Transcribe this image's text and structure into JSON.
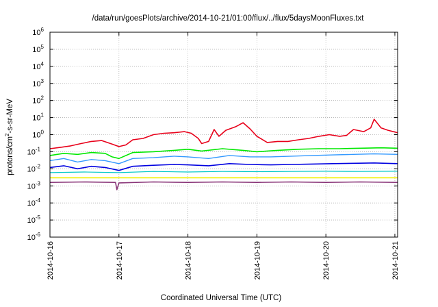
{
  "chart_data": {
    "type": "line",
    "title": "/data/run/goesPlots/archive/2014-10-21/01:00/flux/../flux/5daysMoonFluxes.txt",
    "xlabel": "Coordinated Universal Time (UTC)",
    "ylabel": {
      "base": "protons/cm",
      "sup": "2",
      "rest": "-s-sr-MeV"
    },
    "yscale": "log",
    "ylim_exp": [
      -6,
      6
    ],
    "y_ticks": [
      {
        "base": "10",
        "exp": "6"
      },
      {
        "base": "10",
        "exp": "5"
      },
      {
        "base": "10",
        "exp": "4"
      },
      {
        "base": "10",
        "exp": "3"
      },
      {
        "base": "10",
        "exp": "2"
      },
      {
        "base": "10",
        "exp": "1"
      },
      {
        "base": "10",
        "exp": "0"
      },
      {
        "base": "10",
        "exp": "-1"
      },
      {
        "base": "10",
        "exp": "-2"
      },
      {
        "base": "10",
        "exp": "-3"
      },
      {
        "base": "10",
        "exp": "-4"
      },
      {
        "base": "10",
        "exp": "-5"
      },
      {
        "base": "10",
        "exp": "-6"
      }
    ],
    "x_ticks": [
      "2014-10-16",
      "2014-10-17",
      "2014-10-18",
      "2014-10-19",
      "2014-10-20",
      "2014-10-21"
    ],
    "x_range_days": [
      0,
      5.04
    ],
    "grid": true,
    "series": [
      {
        "color": "#e8001a",
        "width": 1.6,
        "points": [
          [
            0.0,
            0.15
          ],
          [
            0.15,
            0.18
          ],
          [
            0.3,
            0.22
          ],
          [
            0.45,
            0.3
          ],
          [
            0.6,
            0.4
          ],
          [
            0.75,
            0.45
          ],
          [
            0.9,
            0.28
          ],
          [
            1.0,
            0.2
          ],
          [
            1.1,
            0.25
          ],
          [
            1.2,
            0.5
          ],
          [
            1.35,
            0.6
          ],
          [
            1.5,
            1.0
          ],
          [
            1.65,
            1.2
          ],
          [
            1.8,
            1.3
          ],
          [
            1.95,
            1.5
          ],
          [
            2.05,
            1.2
          ],
          [
            2.15,
            0.6
          ],
          [
            2.2,
            0.3
          ],
          [
            2.3,
            0.4
          ],
          [
            2.38,
            2.0
          ],
          [
            2.45,
            0.8
          ],
          [
            2.55,
            1.8
          ],
          [
            2.7,
            3.0
          ],
          [
            2.8,
            5.0
          ],
          [
            2.9,
            2.2
          ],
          [
            3.0,
            0.8
          ],
          [
            3.15,
            0.35
          ],
          [
            3.3,
            0.4
          ],
          [
            3.45,
            0.4
          ],
          [
            3.6,
            0.5
          ],
          [
            3.75,
            0.6
          ],
          [
            3.9,
            0.8
          ],
          [
            4.05,
            1.0
          ],
          [
            4.2,
            0.8
          ],
          [
            4.3,
            0.9
          ],
          [
            4.4,
            2.0
          ],
          [
            4.55,
            1.5
          ],
          [
            4.65,
            2.5
          ],
          [
            4.7,
            8.0
          ],
          [
            4.8,
            2.5
          ],
          [
            4.9,
            1.8
          ],
          [
            5.04,
            1.3
          ]
        ]
      },
      {
        "color": "#00e800",
        "width": 1.6,
        "points": [
          [
            0.0,
            0.06
          ],
          [
            0.2,
            0.08
          ],
          [
            0.4,
            0.07
          ],
          [
            0.6,
            0.09
          ],
          [
            0.8,
            0.08
          ],
          [
            0.9,
            0.05
          ],
          [
            1.0,
            0.04
          ],
          [
            1.2,
            0.09
          ],
          [
            1.5,
            0.1
          ],
          [
            1.8,
            0.12
          ],
          [
            2.0,
            0.14
          ],
          [
            2.2,
            0.11
          ],
          [
            2.5,
            0.15
          ],
          [
            2.8,
            0.12
          ],
          [
            3.0,
            0.1
          ],
          [
            3.3,
            0.12
          ],
          [
            3.6,
            0.14
          ],
          [
            3.9,
            0.15
          ],
          [
            4.2,
            0.15
          ],
          [
            4.5,
            0.16
          ],
          [
            4.8,
            0.17
          ],
          [
            5.04,
            0.16
          ]
        ]
      },
      {
        "color": "#3399ff",
        "width": 1.4,
        "points": [
          [
            0.0,
            0.03
          ],
          [
            0.2,
            0.04
          ],
          [
            0.4,
            0.025
          ],
          [
            0.6,
            0.035
          ],
          [
            0.8,
            0.03
          ],
          [
            1.0,
            0.02
          ],
          [
            1.2,
            0.04
          ],
          [
            1.5,
            0.045
          ],
          [
            1.8,
            0.055
          ],
          [
            2.0,
            0.05
          ],
          [
            2.3,
            0.04
          ],
          [
            2.6,
            0.06
          ],
          [
            2.9,
            0.05
          ],
          [
            3.2,
            0.05
          ],
          [
            3.5,
            0.055
          ],
          [
            3.8,
            0.06
          ],
          [
            4.1,
            0.065
          ],
          [
            4.4,
            0.07
          ],
          [
            4.7,
            0.075
          ],
          [
            5.04,
            0.07
          ]
        ]
      },
      {
        "color": "#0000e0",
        "width": 1.6,
        "points": [
          [
            0.0,
            0.012
          ],
          [
            0.2,
            0.015
          ],
          [
            0.4,
            0.01
          ],
          [
            0.6,
            0.014
          ],
          [
            0.8,
            0.012
          ],
          [
            1.0,
            0.008
          ],
          [
            1.2,
            0.014
          ],
          [
            1.5,
            0.016
          ],
          [
            1.8,
            0.018
          ],
          [
            2.0,
            0.017
          ],
          [
            2.3,
            0.015
          ],
          [
            2.6,
            0.02
          ],
          [
            2.9,
            0.018
          ],
          [
            3.2,
            0.017
          ],
          [
            3.5,
            0.018
          ],
          [
            3.8,
            0.019
          ],
          [
            4.1,
            0.02
          ],
          [
            4.4,
            0.021
          ],
          [
            4.7,
            0.022
          ],
          [
            5.04,
            0.02
          ]
        ]
      },
      {
        "color": "#00c8c8",
        "width": 1.2,
        "points": [
          [
            0.0,
            0.006
          ],
          [
            0.5,
            0.0065
          ],
          [
            1.0,
            0.006
          ],
          [
            1.5,
            0.007
          ],
          [
            2.0,
            0.0065
          ],
          [
            2.5,
            0.007
          ],
          [
            3.0,
            0.0068
          ],
          [
            3.5,
            0.007
          ],
          [
            4.0,
            0.0072
          ],
          [
            4.5,
            0.007
          ],
          [
            5.04,
            0.0072
          ]
        ]
      },
      {
        "color": "#f0f000",
        "width": 1.6,
        "points": [
          [
            0.0,
            0.003
          ],
          [
            1.0,
            0.003
          ],
          [
            2.0,
            0.003
          ],
          [
            3.0,
            0.003
          ],
          [
            4.0,
            0.003
          ],
          [
            5.04,
            0.003
          ]
        ]
      },
      {
        "color": "#883377",
        "width": 1.6,
        "points": [
          [
            0.0,
            0.0016
          ],
          [
            0.5,
            0.0017
          ],
          [
            0.95,
            0.0016
          ],
          [
            0.97,
            0.0006
          ],
          [
            1.0,
            0.0015
          ],
          [
            1.5,
            0.0017
          ],
          [
            2.0,
            0.0016
          ],
          [
            2.5,
            0.0017
          ],
          [
            3.0,
            0.0016
          ],
          [
            3.5,
            0.0017
          ],
          [
            4.0,
            0.0016
          ],
          [
            4.5,
            0.0017
          ],
          [
            5.04,
            0.0016
          ]
        ]
      }
    ]
  }
}
